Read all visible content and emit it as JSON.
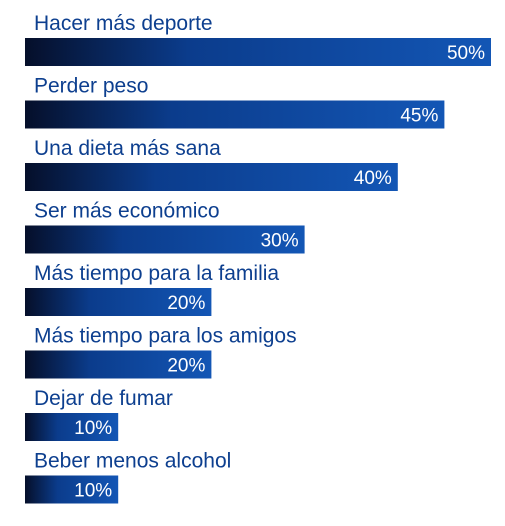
{
  "chart_data": {
    "type": "bar",
    "orientation": "horizontal",
    "categories": [
      "Hacer más deporte",
      "Perder peso",
      "Una dieta más sana",
      "Ser más económico",
      "Más tiempo para la familia",
      "Más tiempo para los amigos",
      "Dejar de fumar",
      "Beber menos alcohol"
    ],
    "values": [
      50,
      45,
      40,
      30,
      20,
      20,
      10,
      10
    ],
    "value_labels": [
      "50%",
      "45%",
      "40%",
      "30%",
      "20%",
      "20%",
      "10%",
      "10%"
    ],
    "unit": "%",
    "xlim": [
      0,
      50
    ],
    "grid": false,
    "legend": "none",
    "colors": {
      "bar_start": "#050f2a",
      "bar_mid": "#0b3c8c",
      "bar_end": "#1356b5",
      "category_text": "#0d3f8f",
      "value_text": "#ffffff"
    }
  }
}
